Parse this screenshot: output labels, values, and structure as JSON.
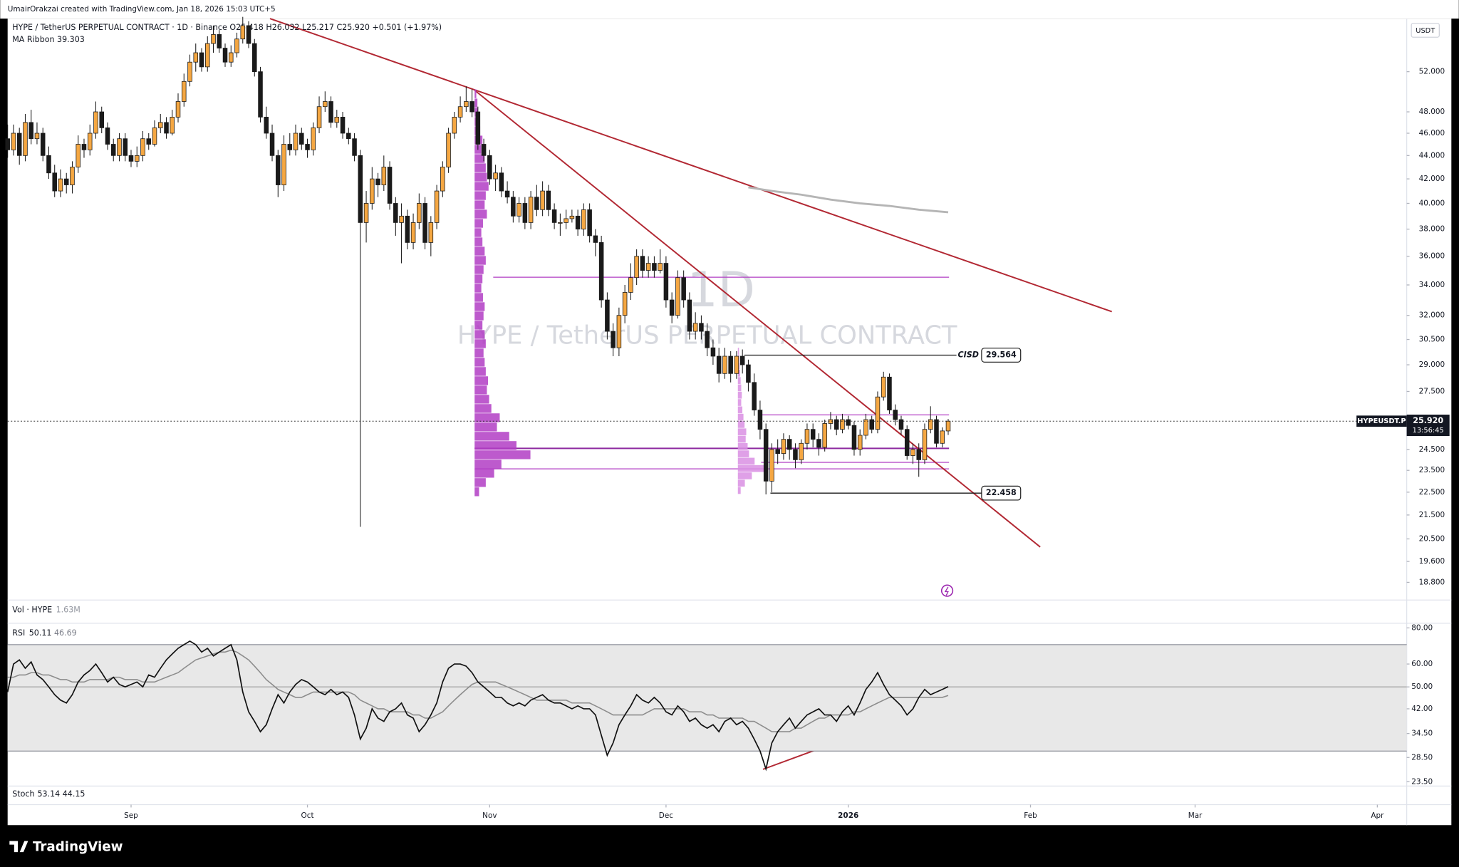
{
  "header": {
    "author_line": "UmairOrakzai created with TradingView.com, Jan 18, 2026 15:03 UTC+5",
    "legend_line": "HYPE / TetherUS PERPETUAL CONTRACT · 1D · Binance  O25.418 H26.032 L25.217 C25.920 +0.501 (+1.97%)",
    "ma_line": "MA Ribbon  39.303"
  },
  "watermark": {
    "symbol": "HYPE / TetherUS PERPETUAL CONTRACT",
    "interval": "1D"
  },
  "currency": "USDT",
  "chart_data": {
    "type": "candlestick",
    "log_scale": true,
    "xlim": [
      0,
      238
    ],
    "xticks": [
      {
        "value": 21,
        "label": "Sep"
      },
      {
        "value": 51,
        "label": "Oct"
      },
      {
        "value": 82,
        "label": "Nov"
      },
      {
        "value": 112,
        "label": "Dec"
      },
      {
        "value": 143,
        "label": "2026"
      },
      {
        "value": 174,
        "label": "Feb"
      },
      {
        "value": 202,
        "label": "Mar"
      },
      {
        "value": 233,
        "label": "Apr"
      }
    ],
    "ylim": [
      18.15,
      57.8
    ],
    "yticks": [
      {
        "value": 52,
        "label": "52.000"
      },
      {
        "value": 48,
        "label": "48.000"
      },
      {
        "value": 46,
        "label": "46.000"
      },
      {
        "value": 44,
        "label": "44.000"
      },
      {
        "value": 42,
        "label": "42.000"
      },
      {
        "value": 40,
        "label": "40.000"
      },
      {
        "value": 38,
        "label": "38.000"
      },
      {
        "value": 36,
        "label": "36.000"
      },
      {
        "value": 34,
        "label": "34.000"
      },
      {
        "value": 32,
        "label": "32.000"
      },
      {
        "value": 30.5,
        "label": "30.500"
      },
      {
        "value": 29,
        "label": "29.000"
      },
      {
        "value": 27.5,
        "label": "27.500"
      },
      {
        "value": 24.5,
        "label": "24.500"
      },
      {
        "value": 23.5,
        "label": "23.500"
      },
      {
        "value": 22.5,
        "label": "22.500"
      },
      {
        "value": 21.5,
        "label": "21.500"
      },
      {
        "value": 20.5,
        "label": "20.500"
      },
      {
        "value": 19.6,
        "label": "19.600"
      },
      {
        "value": 18.8,
        "label": "18.800"
      }
    ],
    "up_color": "#f5a742",
    "down_color": "#1a1a1a",
    "candles": [
      [
        45.5,
        46.8,
        43.8,
        44.5
      ],
      [
        44.5,
        46.8,
        44,
        46
      ],
      [
        46,
        46.5,
        43.2,
        44
      ],
      [
        44,
        47.8,
        43.5,
        47
      ],
      [
        47,
        48.2,
        45,
        45.5
      ],
      [
        45.5,
        47,
        45,
        46
      ],
      [
        46,
        46.5,
        43.5,
        44
      ],
      [
        44,
        44.8,
        42,
        42.5
      ],
      [
        42.5,
        43.2,
        40.5,
        41
      ],
      [
        41,
        42.8,
        40.5,
        42
      ],
      [
        42,
        42.5,
        40.8,
        41.5
      ],
      [
        41.5,
        43.5,
        40.8,
        43
      ],
      [
        43,
        45.8,
        42.5,
        45
      ],
      [
        45,
        45.5,
        43.8,
        44.5
      ],
      [
        44.5,
        46.8,
        44,
        46
      ],
      [
        46,
        49,
        45.5,
        48
      ],
      [
        48,
        48.5,
        46,
        46.5
      ],
      [
        46.5,
        47,
        44.5,
        45
      ],
      [
        45,
        45.5,
        43.5,
        44
      ],
      [
        44,
        46,
        43.5,
        45.5
      ],
      [
        45.5,
        46,
        43.5,
        44
      ],
      [
        44,
        44.5,
        43,
        43.5
      ],
      [
        43.5,
        44.8,
        43,
        44
      ],
      [
        44,
        46.2,
        43.5,
        45.5
      ],
      [
        45.5,
        46,
        44.5,
        45
      ],
      [
        45,
        47.2,
        44.8,
        46.5
      ],
      [
        46.5,
        47.8,
        46,
        47
      ],
      [
        47,
        47.5,
        45.5,
        46
      ],
      [
        46,
        48.2,
        45.8,
        47.5
      ],
      [
        47.5,
        49.8,
        47,
        49
      ],
      [
        49,
        51.8,
        48.5,
        51
      ],
      [
        51,
        53.8,
        50.5,
        53
      ],
      [
        53,
        55,
        52,
        54
      ],
      [
        54,
        54.5,
        52,
        52.5
      ],
      [
        52.5,
        55.8,
        52,
        55
      ],
      [
        55,
        57,
        54,
        56
      ],
      [
        56,
        56.5,
        54,
        54.5
      ],
      [
        54.5,
        55,
        52.5,
        53
      ],
      [
        53,
        54.8,
        52.5,
        54
      ],
      [
        54,
        56.2,
        53.5,
        55.5
      ],
      [
        55.5,
        58,
        55,
        57
      ],
      [
        57,
        57.5,
        54.5,
        55
      ],
      [
        55,
        55.5,
        51.5,
        52
      ],
      [
        52,
        52.5,
        47,
        47.5
      ],
      [
        47.5,
        48.5,
        45.5,
        46
      ],
      [
        46,
        46.8,
        43.5,
        44
      ],
      [
        44,
        44.5,
        40.5,
        41.5
      ],
      [
        41.5,
        45.8,
        41,
        45
      ],
      [
        45,
        46,
        44,
        44.5
      ],
      [
        44.5,
        46.8,
        44,
        46
      ],
      [
        46,
        46.5,
        44.5,
        45
      ],
      [
        45,
        45.5,
        43.8,
        44.5
      ],
      [
        44.5,
        47,
        44,
        46.5
      ],
      [
        46.5,
        49.5,
        46,
        48.5
      ],
      [
        48.5,
        50,
        48,
        49
      ],
      [
        49,
        49.5,
        46.5,
        47
      ],
      [
        47,
        48.2,
        46.5,
        47.5
      ],
      [
        47.5,
        48,
        45.5,
        46
      ],
      [
        46,
        46.5,
        45,
        45.5
      ],
      [
        45.5,
        46,
        43.5,
        44
      ],
      [
        44,
        44.5,
        21,
        38.5
      ],
      [
        38.5,
        41,
        37,
        40
      ],
      [
        40,
        43,
        39.5,
        42
      ],
      [
        42,
        42.5,
        40.5,
        41.5
      ],
      [
        41.5,
        44,
        41,
        43
      ],
      [
        43,
        43.5,
        39.5,
        40
      ],
      [
        40,
        40.5,
        37.5,
        38.5
      ],
      [
        38.5,
        40,
        35.5,
        39
      ],
      [
        39,
        39.5,
        36.5,
        37
      ],
      [
        37,
        39.2,
        36.5,
        38.5
      ],
      [
        38.5,
        40.8,
        38,
        40
      ],
      [
        40,
        40.5,
        36.5,
        37
      ],
      [
        37,
        39,
        36,
        38.5
      ],
      [
        38.5,
        41.5,
        38,
        41
      ],
      [
        41,
        43.5,
        40.5,
        43
      ],
      [
        43,
        46.5,
        42.5,
        46
      ],
      [
        46,
        48,
        45.5,
        47.5
      ],
      [
        47.5,
        49.5,
        47,
        48.5
      ],
      [
        48.5,
        50.5,
        48,
        49
      ],
      [
        49,
        50.2,
        47.5,
        48
      ],
      [
        48,
        48.5,
        44.5,
        45
      ],
      [
        45,
        45.5,
        43.5,
        44
      ],
      [
        44,
        44.5,
        41.5,
        42
      ],
      [
        42,
        43.2,
        41,
        42.5
      ],
      [
        42.5,
        43,
        40.5,
        41
      ],
      [
        41,
        41.8,
        40,
        40.5
      ],
      [
        40.5,
        41,
        38.5,
        39
      ],
      [
        39,
        40.5,
        38.5,
        40
      ],
      [
        40,
        40.5,
        38,
        38.5
      ],
      [
        38.5,
        41,
        38,
        40.5
      ],
      [
        40.5,
        41.5,
        39,
        39.5
      ],
      [
        39.5,
        41.8,
        39,
        41
      ],
      [
        41,
        41.5,
        39,
        39.5
      ],
      [
        39.5,
        40,
        38,
        38.5
      ],
      [
        38.5,
        39.2,
        37.5,
        38.5
      ],
      [
        38.5,
        39.5,
        38,
        38.8
      ],
      [
        38.8,
        39.5,
        38.5,
        39
      ],
      [
        39,
        39.5,
        37.5,
        38
      ],
      [
        38,
        40,
        37.5,
        39.5
      ],
      [
        39.5,
        40,
        37,
        37.5
      ],
      [
        37.5,
        38,
        36,
        37
      ],
      [
        37,
        37.5,
        32.5,
        33
      ],
      [
        33,
        33.5,
        30.5,
        31
      ],
      [
        31,
        31.5,
        29.5,
        30
      ],
      [
        30,
        32.5,
        29.5,
        32
      ],
      [
        32,
        34,
        31.5,
        33.5
      ],
      [
        33.5,
        35.5,
        33,
        34.5
      ],
      [
        34.5,
        36.5,
        34,
        36
      ],
      [
        36,
        36.5,
        34.5,
        35
      ],
      [
        35,
        36,
        34.5,
        35.5
      ],
      [
        35.5,
        36,
        34.5,
        35
      ],
      [
        35,
        36.5,
        34.8,
        35.5
      ],
      [
        35.5,
        36,
        32.5,
        33
      ],
      [
        33,
        33.5,
        31.5,
        32
      ],
      [
        32,
        35,
        31.8,
        34.5
      ],
      [
        34.5,
        35,
        32.5,
        33
      ],
      [
        33,
        33.5,
        30.5,
        31
      ],
      [
        31,
        32.2,
        30.5,
        31.5
      ],
      [
        31.5,
        32,
        30.5,
        31
      ],
      [
        31,
        31.5,
        29.5,
        30
      ],
      [
        30,
        30.5,
        29,
        29.5
      ],
      [
        29.5,
        30,
        28,
        28.5
      ],
      [
        28.5,
        30,
        28.2,
        29.5
      ],
      [
        29.5,
        29.8,
        28,
        28.5
      ],
      [
        28.5,
        29.8,
        28.2,
        29.5
      ],
      [
        29.5,
        29.9,
        28.5,
        29
      ],
      [
        29,
        29.3,
        27.5,
        28
      ],
      [
        28,
        28.5,
        26.2,
        26.5
      ],
      [
        26.5,
        27,
        25,
        25.5
      ],
      [
        25.5,
        25.8,
        22.4,
        23
      ],
      [
        23,
        24.8,
        22.5,
        24.5
      ],
      [
        24.5,
        25,
        23.8,
        24.3
      ],
      [
        24.3,
        25.3,
        24,
        25
      ],
      [
        25,
        25.2,
        24,
        24.5
      ],
      [
        24.5,
        24.8,
        23.6,
        24
      ],
      [
        24,
        25,
        23.8,
        24.8
      ],
      [
        24.8,
        25.8,
        24.5,
        25.5
      ],
      [
        25.5,
        25.8,
        24.6,
        25
      ],
      [
        25,
        25.3,
        24.2,
        24.6
      ],
      [
        24.6,
        26,
        24.4,
        25.8
      ],
      [
        25.8,
        26.4,
        25.5,
        26
      ],
      [
        26,
        26.2,
        25.2,
        25.5
      ],
      [
        25.5,
        26.3,
        25.3,
        26
      ],
      [
        26,
        26.2,
        25.5,
        25.7
      ],
      [
        25.7,
        25.9,
        24.2,
        24.5
      ],
      [
        24.5,
        25.5,
        24.2,
        25.2
      ],
      [
        25.2,
        26.3,
        25,
        26
      ],
      [
        26,
        26.2,
        25.3,
        25.5
      ],
      [
        25.5,
        27.5,
        25.3,
        27.2
      ],
      [
        27.2,
        28.6,
        27,
        28.3
      ],
      [
        28.3,
        28.5,
        26.3,
        26.5
      ],
      [
        26.5,
        26.8,
        25.7,
        26
      ],
      [
        26,
        26.2,
        25.2,
        25.5
      ],
      [
        25.5,
        25.7,
        24,
        24.2
      ],
      [
        24.2,
        24.8,
        23.8,
        24.5
      ],
      [
        24.5,
        24.8,
        23.2,
        24
      ],
      [
        24,
        25.8,
        23.8,
        25.5
      ],
      [
        25.5,
        26.7,
        25.3,
        26
      ],
      [
        26,
        26.2,
        24.6,
        24.8
      ],
      [
        24.8,
        25.6,
        24.6,
        25.42
      ],
      [
        25.418,
        26.032,
        25.217,
        25.92
      ]
    ],
    "ma_ribbon": {
      "color": "#b5b5b5",
      "x": [
        126,
        130,
        135,
        140,
        145,
        150,
        155,
        160
      ],
      "values": [
        41.3,
        41.0,
        40.7,
        40.3,
        40.0,
        39.8,
        39.5,
        39.3
      ]
    },
    "last_price": {
      "symbol_label": "HYPEUSDT.P",
      "label": "25.920",
      "countdown": "13:56:45"
    },
    "annotations": [
      {
        "label": "CISD",
        "value": 29.564
      },
      {
        "value": 22.458
      }
    ],
    "volume_profiles": [
      {
        "color": "#b13dc4",
        "price_range": [
          22.3,
          50.2
        ],
        "volumes": [
          3,
          5,
          6,
          8,
          10,
          14,
          12,
          18,
          20,
          22,
          25,
          20,
          18,
          22,
          15,
          12,
          14,
          18,
          20,
          16,
          14,
          12,
          15,
          18,
          16,
          14,
          18,
          20,
          16,
          18,
          20,
          24,
          22,
          26,
          30,
          45,
          40,
          62,
          75,
          100,
          48,
          35,
          20,
          8
        ]
      },
      {
        "color": "#d98fe3",
        "price_range": [
          22.4,
          30
        ],
        "volumes": [
          4,
          5,
          6,
          8,
          10,
          12,
          14,
          12,
          16,
          20,
          24,
          30,
          28,
          35,
          40,
          60,
          100,
          50,
          25,
          10
        ]
      }
    ]
  },
  "vol_pane": {
    "label": "Vol · HYPE",
    "value": "1.63M"
  },
  "rsi": {
    "name": "RSI",
    "color": "#111111",
    "ma_color": "#8c8c8c",
    "log_scale": true,
    "ylim": [
      22.7,
      83
    ],
    "band": [
      30,
      70
    ],
    "midline": 50,
    "yticks": [
      {
        "value": 80,
        "label": "80.00"
      },
      {
        "value": 60,
        "label": "60.00"
      },
      {
        "value": 50,
        "label": "50.00"
      },
      {
        "value": 42,
        "label": "42.00"
      },
      {
        "value": 34.5,
        "label": "34.50"
      },
      {
        "value": 28.5,
        "label": "28.50"
      },
      {
        "value": 23.5,
        "label": "23.50"
      }
    ],
    "values": [
      48,
      60,
      62,
      58,
      61,
      55,
      53,
      50,
      47,
      45,
      44,
      47,
      52,
      55,
      57,
      60,
      56,
      52,
      54,
      51,
      50,
      51,
      52,
      50,
      55,
      54,
      58,
      62,
      65,
      68,
      70,
      72,
      70,
      66,
      68,
      64,
      66,
      68,
      70,
      62,
      48,
      41,
      38,
      35,
      37,
      42,
      47,
      44,
      48,
      51,
      53,
      52,
      50,
      48,
      47,
      49,
      47,
      48,
      46,
      40,
      33,
      36,
      42,
      39,
      38,
      41,
      42,
      44,
      40,
      39,
      35,
      37,
      40,
      44,
      52,
      58,
      60,
      60,
      59,
      56,
      52,
      50,
      48,
      46,
      46,
      44,
      43,
      44,
      43,
      45,
      46,
      47,
      45,
      44,
      44,
      43,
      42,
      43,
      42,
      42,
      40,
      34,
      29,
      32,
      37,
      40,
      43,
      47,
      45,
      44,
      46,
      44,
      41,
      40,
      43,
      41,
      38,
      39,
      37,
      36,
      37,
      35,
      38,
      39,
      37,
      38,
      36,
      33,
      30,
      26,
      32,
      35,
      37,
      39,
      36,
      38,
      40,
      41,
      42,
      40,
      40,
      38,
      41,
      43,
      40,
      44,
      49,
      52,
      56,
      51,
      47,
      45,
      43,
      40,
      42,
      46,
      49,
      47,
      48,
      49,
      50.11
    ],
    "ma_values": [
      54,
      54,
      55,
      55,
      56,
      56,
      55,
      55,
      54,
      53,
      53,
      52,
      52,
      52,
      53,
      53,
      53,
      53,
      54,
      54,
      53,
      53,
      53,
      52,
      52,
      52,
      53,
      54,
      55,
      56,
      58,
      60,
      62,
      63,
      64,
      65,
      66,
      66,
      67,
      66,
      64,
      62,
      59,
      56,
      53,
      51,
      49,
      48,
      47,
      46,
      46,
      47,
      48,
      48,
      48,
      48,
      48,
      48,
      48,
      47,
      45,
      44,
      43,
      42,
      42,
      41,
      41,
      41,
      41,
      40,
      40,
      39,
      39,
      40,
      41,
      43,
      45,
      47,
      49,
      51,
      52,
      52,
      52,
      52,
      51,
      50,
      49,
      48,
      47,
      46,
      45,
      45,
      45,
      45,
      45,
      45,
      44,
      44,
      44,
      44,
      43,
      42,
      41,
      40,
      40,
      40,
      40,
      40,
      40,
      41,
      42,
      42,
      42,
      42,
      42,
      42,
      41,
      41,
      41,
      40,
      40,
      39,
      39,
      39,
      39,
      39,
      38,
      38,
      37,
      36,
      35,
      35,
      35,
      35,
      36,
      36,
      37,
      38,
      39,
      39,
      40,
      40,
      40,
      40,
      41,
      41,
      42,
      43,
      44,
      45,
      46,
      46,
      46,
      46,
      46,
      46,
      46,
      46,
      46,
      46,
      46.69
    ]
  },
  "stoch": {
    "name": "Stoch",
    "k": 53.14,
    "d": 44.15
  },
  "footer": {
    "brand": "TradingView"
  }
}
